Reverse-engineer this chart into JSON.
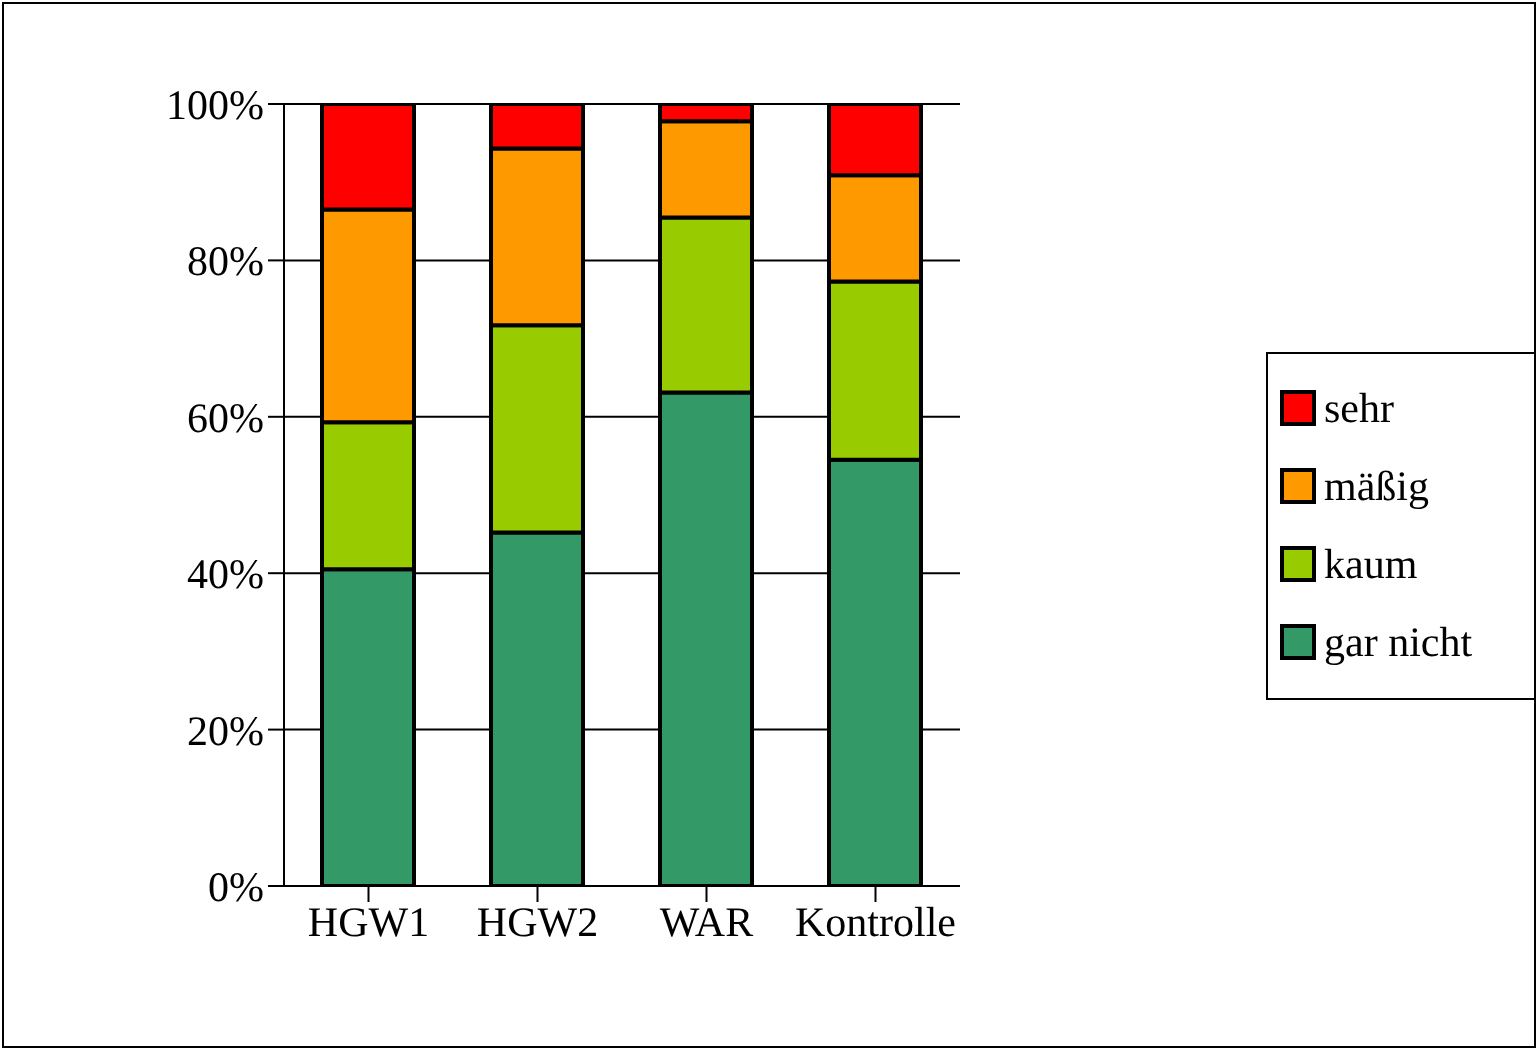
{
  "chart_data": {
    "type": "bar",
    "stacked": true,
    "categories": [
      "HGW1",
      "HGW2",
      "WAR",
      "Kontrolle"
    ],
    "series": [
      {
        "name": "gar nicht",
        "color": "#339966",
        "values": [
          40.5,
          45.2,
          63.1,
          54.5
        ]
      },
      {
        "name": "kaum",
        "color": "#99cc00",
        "values": [
          18.8,
          26.5,
          22.4,
          22.8
        ]
      },
      {
        "name": "mäßig",
        "color": "#ff9900",
        "values": [
          27.2,
          22.6,
          12.3,
          13.6
        ]
      },
      {
        "name": "sehr",
        "color": "#ff0000",
        "values": [
          13.5,
          5.7,
          2.2,
          9.1
        ]
      }
    ],
    "ylim": [
      0,
      100
    ],
    "yticks": [
      {
        "value": 0,
        "label": "0%"
      },
      {
        "value": 20,
        "label": "20%"
      },
      {
        "value": 40,
        "label": "40%"
      },
      {
        "value": 60,
        "label": "60%"
      },
      {
        "value": 80,
        "label": "80%"
      },
      {
        "value": 100,
        "label": "100%"
      }
    ],
    "grid": "y",
    "legend": "right"
  }
}
